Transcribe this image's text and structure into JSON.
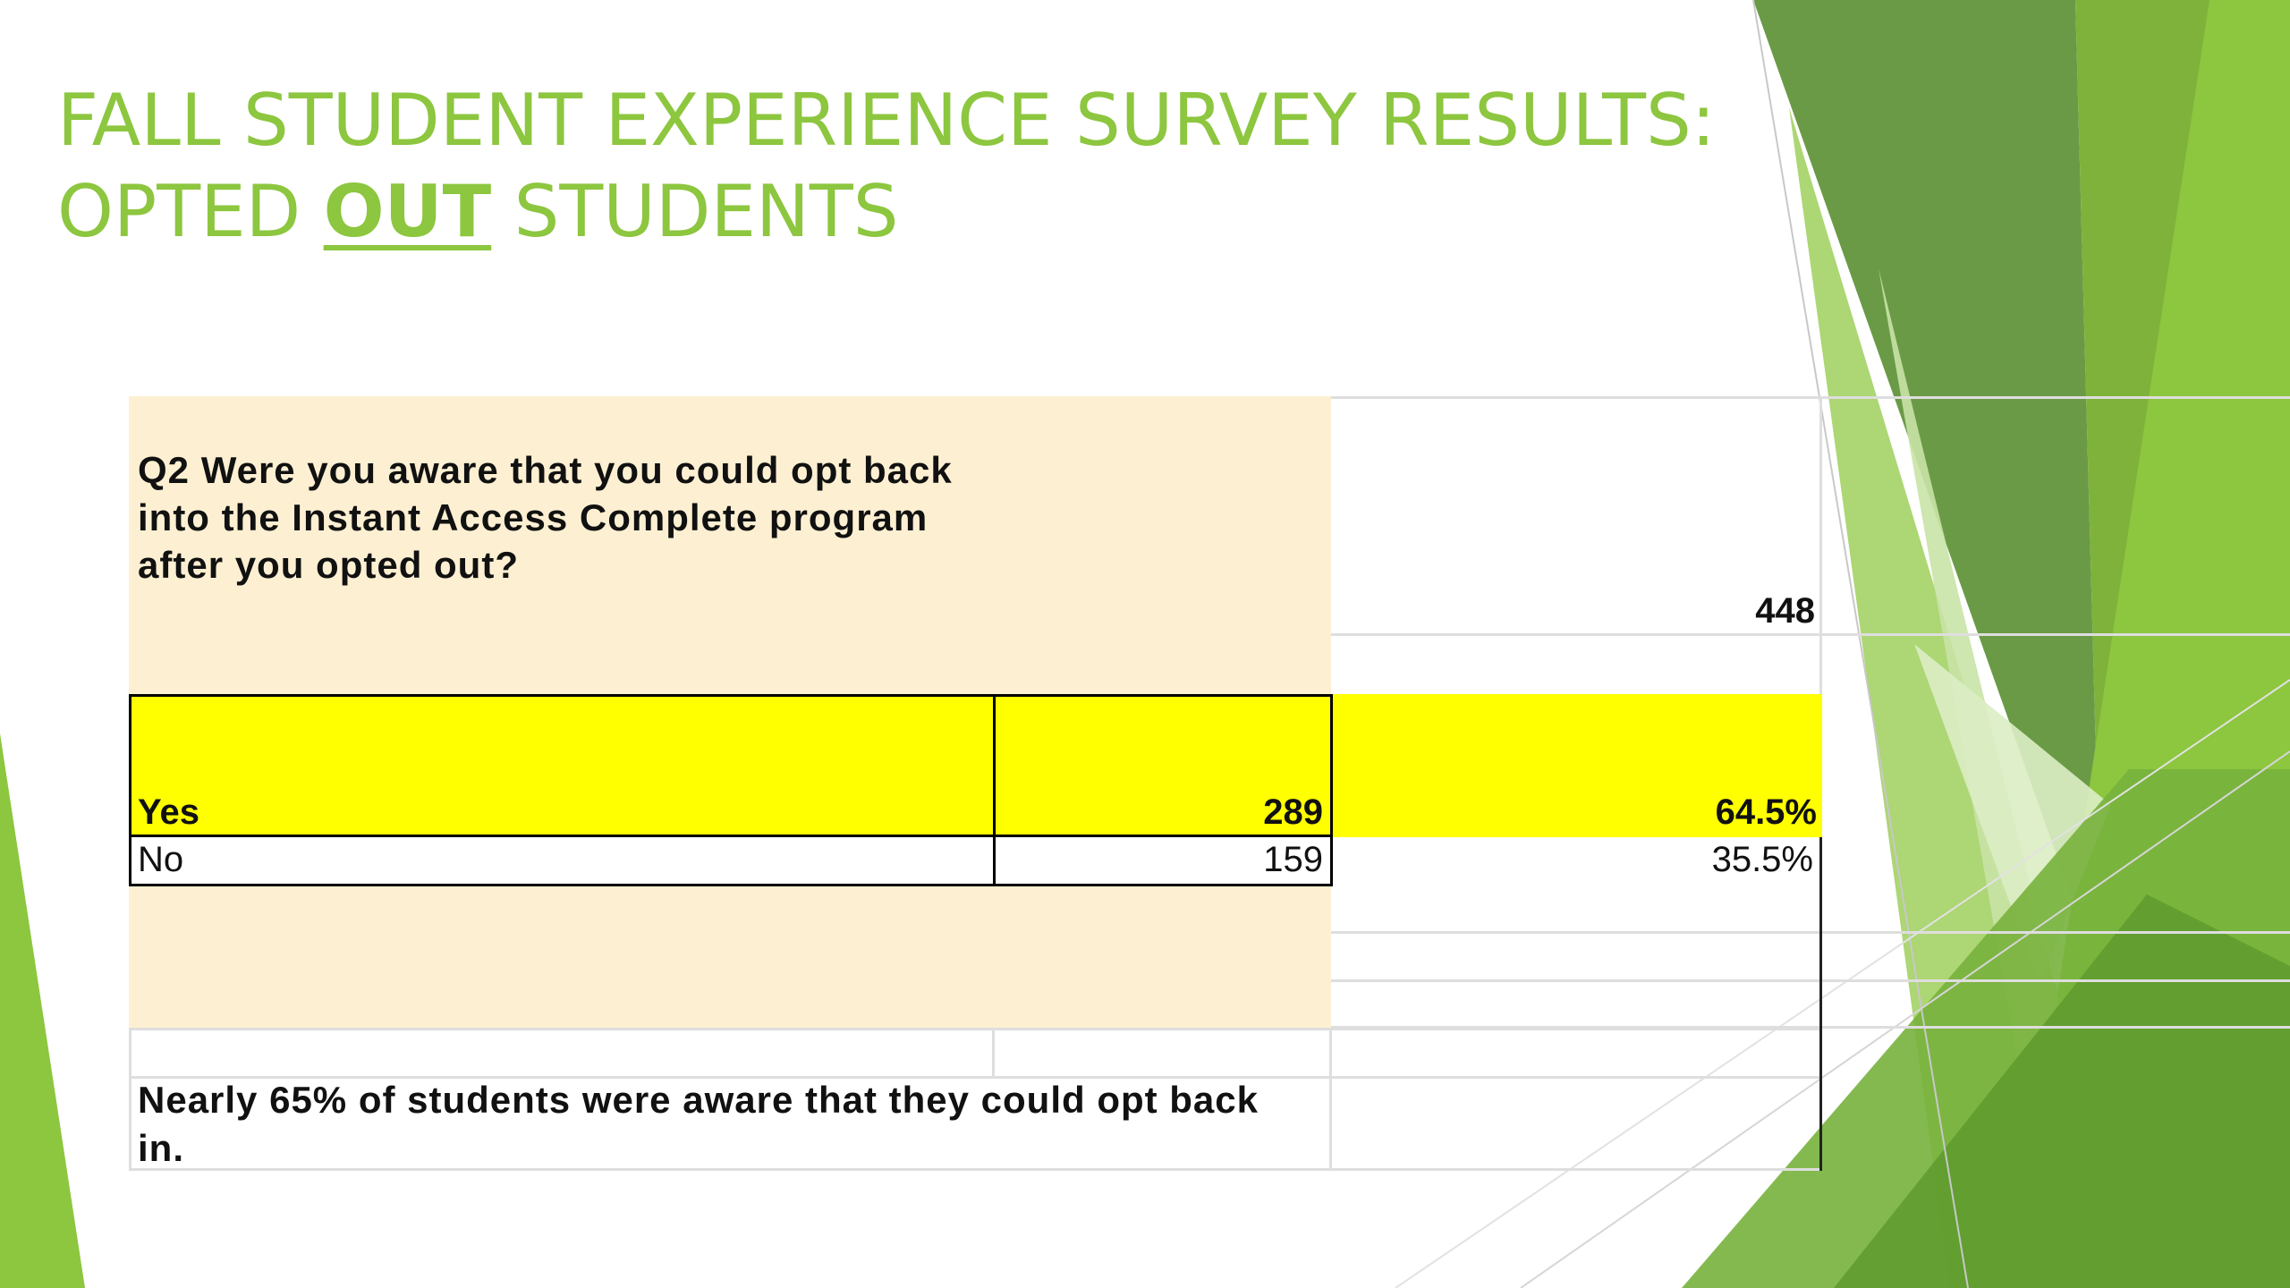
{
  "slide": {
    "title_line1": "FALL STUDENT EXPERIENCE SURVEY RESULTS:",
    "title_line2_pre": "OPTED ",
    "title_line2_emph": "OUT",
    "title_line2_post": " STUDENTS"
  },
  "table": {
    "question": "Q2 Were you aware that you could opt back into the Instant Access Complete program after you opted out?",
    "total": "448",
    "rows": [
      {
        "label": "Yes",
        "count": "289",
        "percent": "64.5%"
      },
      {
        "label": "No",
        "count": "159",
        "percent": "35.5%"
      }
    ],
    "summary": "Nearly 65% of students were aware that they could opt back in."
  },
  "colors": {
    "title": "#8dc63f",
    "highlight": "#ffff00",
    "cell_fill": "#fdf0d2"
  }
}
